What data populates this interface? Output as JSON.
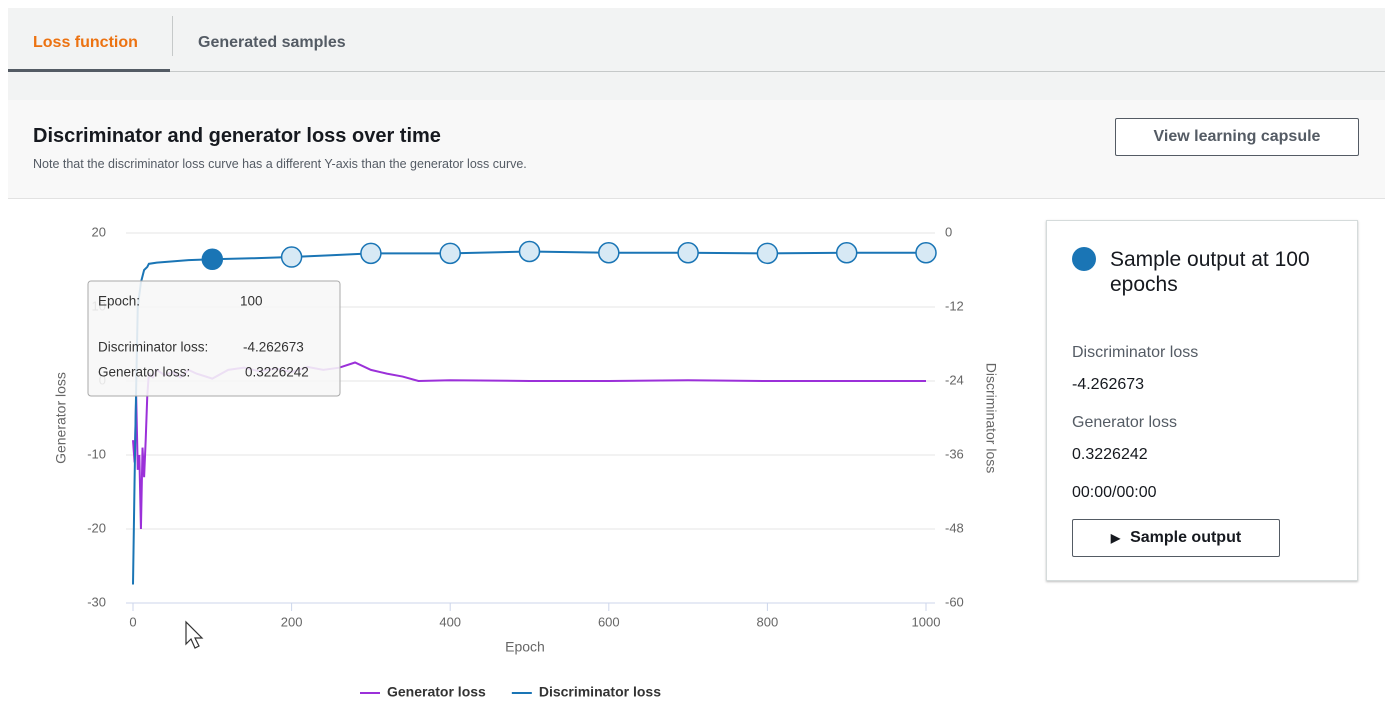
{
  "tabs": [
    "Loss function",
    "Generated samples"
  ],
  "header": {
    "title": "Discriminator and generator loss over time",
    "subtitle": "Note that the discriminator loss curve has a different Y-axis than the generator loss curve.",
    "button": "View learning capsule"
  },
  "chart_data": {
    "type": "line",
    "xlabel": "Epoch",
    "ylabel": "Generator loss",
    "y2label": "Discriminator loss",
    "xlim": [
      0,
      1000
    ],
    "xticks": [
      0,
      200,
      400,
      600,
      800,
      1000
    ],
    "ylim": [
      -30,
      20
    ],
    "yticks": [
      -30,
      -20,
      -10,
      0,
      10,
      20
    ],
    "y2lim": [
      -60,
      0
    ],
    "y2ticks": [
      0,
      -12,
      -24,
      -36,
      -48,
      -60
    ],
    "grid": true,
    "series": [
      {
        "name": "Generator loss",
        "color": "#9b30d9",
        "x": [
          0,
          2,
          4,
          6,
          8,
          10,
          12,
          14,
          16,
          18,
          20,
          25,
          30,
          40,
          50,
          60,
          70,
          80,
          100,
          120,
          140,
          160,
          180,
          200,
          220,
          240,
          260,
          280,
          300,
          320,
          340,
          360,
          400,
          500,
          600,
          700,
          800,
          900,
          1000
        ],
        "values": [
          -8,
          -11,
          -2,
          -12,
          -10,
          -20,
          -9,
          -13,
          -8,
          -2,
          1,
          0.5,
          1.5,
          0.8,
          1.2,
          0.5,
          1.5,
          1,
          0.32,
          1.5,
          1.8,
          1.3,
          1.7,
          1.2,
          1.9,
          1.5,
          1.8,
          2.5,
          1.5,
          1,
          0.6,
          0,
          0.1,
          0,
          0,
          0.1,
          0,
          0,
          0
        ]
      },
      {
        "name": "Discriminator loss",
        "color": "#1a75b5",
        "axis": "y2",
        "x": [
          0,
          2,
          4,
          6,
          8,
          10,
          14,
          18,
          20,
          30,
          50,
          70,
          100,
          150,
          200,
          250,
          300,
          400,
          500,
          600,
          700,
          800,
          900,
          1000
        ],
        "values": [
          -57,
          -40,
          -25,
          -12,
          -10,
          -8,
          -6,
          -5.5,
          -5,
          -4.8,
          -4.6,
          -4.4,
          -4.26,
          -4.1,
          -3.9,
          -3.6,
          -3.3,
          -3.3,
          -3.0,
          -3.2,
          -3.2,
          -3.3,
          -3.2,
          -3.2
        ]
      }
    ],
    "sample_epochs": [
      100,
      200,
      300,
      400,
      500,
      600,
      700,
      800,
      900,
      1000
    ],
    "tooltip": {
      "epoch_label": "Epoch:",
      "epoch": 100,
      "discriminator_label": "Discriminator loss:",
      "discriminator": "-4.262673",
      "generator_label": "Generator loss:",
      "generator": "0.3226242"
    }
  },
  "panel": {
    "title": "Sample output at 100 epochs",
    "discriminator_label": "Discriminator loss",
    "discriminator": "-4.262673",
    "generator_label": "Generator loss",
    "generator": "0.3226242",
    "time": "00:00/00:00",
    "button": "Sample output"
  }
}
